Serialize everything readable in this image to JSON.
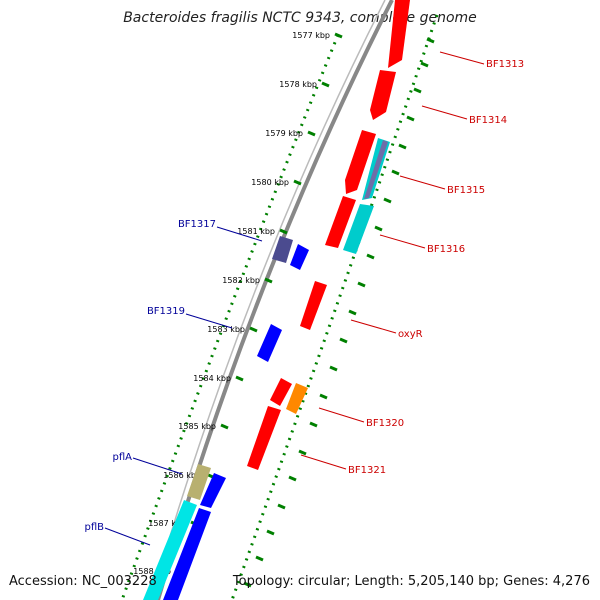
{
  "title": "Bacteroides fragilis NCTC 9343, complete genome",
  "accession_text": "Accession: NC_003228",
  "summary_text": "Topology: circular; Length: 5,205,140 bp; Genes: 4,276",
  "colors": {
    "forward_label": "#cc0000",
    "reverse_label": "#000099",
    "tick": "#008000",
    "backbone": "#808080"
  },
  "ticks": [
    "1577 kbp",
    "1578 kbp",
    "1579 kbp",
    "1580 kbp",
    "1581 kbp",
    "1582 kbp",
    "1583 kbp",
    "1584 kbp",
    "1585 kbp",
    "1586 kbp",
    "1587 kbp",
    "1588 kbp"
  ],
  "features_forward": [
    {
      "label": "BF1313",
      "color": "#ff0000"
    },
    {
      "label": "BF1314",
      "color": "#ff0000"
    },
    {
      "label": "BF1315",
      "color": "#ff0000"
    },
    {
      "label": "BF1316",
      "color": "#ff0000"
    },
    {
      "label": "oxyR",
      "color": "#ff0000"
    },
    {
      "label": "BF1320",
      "color": "#ff0000"
    },
    {
      "label": "BF1321",
      "color": "#ff0000"
    }
  ],
  "features_reverse": [
    {
      "label": "BF1317",
      "color": "#0000ff"
    },
    {
      "label": "BF1319",
      "color": "#0000ff"
    },
    {
      "label": "pflA",
      "color": "#0000ff"
    },
    {
      "label": "pflB",
      "color": "#0000ff"
    }
  ]
}
